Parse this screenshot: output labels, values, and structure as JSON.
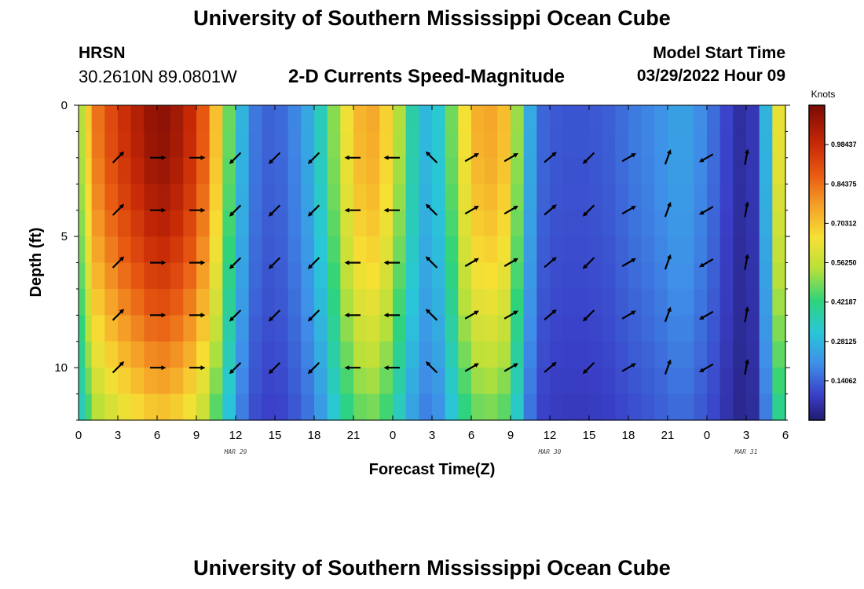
{
  "header": {
    "title": "University of Southern Mississippi Ocean Cube",
    "station": "HRSN",
    "coordinates": "30.2610N  89.0801W",
    "subtitle": "2-D Currents Speed-Magnitude",
    "model_start_label": "Model Start Time",
    "model_start_value": "03/29/2022 Hour 09"
  },
  "footer": {
    "title": "University of Southern Mississippi Ocean Cube"
  },
  "chart_data": {
    "type": "heatmap",
    "title": "2-D Currents Speed-Magnitude",
    "xlabel": "Forecast Time(Z)",
    "ylabel": "Depth (ft)",
    "xlim": [
      0,
      54
    ],
    "ylim": [
      0,
      12
    ],
    "x_ticks": [
      {
        "x": 0,
        "label": "0"
      },
      {
        "x": 3,
        "label": "3"
      },
      {
        "x": 6,
        "label": "6"
      },
      {
        "x": 9,
        "label": "9"
      },
      {
        "x": 12,
        "label": "12"
      },
      {
        "x": 15,
        "label": "15"
      },
      {
        "x": 18,
        "label": "18"
      },
      {
        "x": 21,
        "label": "21"
      },
      {
        "x": 24,
        "label": "0"
      },
      {
        "x": 27,
        "label": "3"
      },
      {
        "x": 30,
        "label": "6"
      },
      {
        "x": 33,
        "label": "9"
      },
      {
        "x": 36,
        "label": "12"
      },
      {
        "x": 39,
        "label": "15"
      },
      {
        "x": 42,
        "label": "18"
      },
      {
        "x": 45,
        "label": "21"
      },
      {
        "x": 48,
        "label": "0"
      },
      {
        "x": 51,
        "label": "3"
      },
      {
        "x": 54,
        "label": "6"
      }
    ],
    "date_labels": [
      {
        "x": 12,
        "label": "MAR 29"
      },
      {
        "x": 36,
        "label": "MAR 30"
      },
      {
        "x": 51,
        "label": "MAR 31"
      }
    ],
    "y_ticks": [
      {
        "y": 0,
        "label": "0"
      },
      {
        "y": 5,
        "label": "5"
      },
      {
        "y": 10,
        "label": "10"
      }
    ],
    "colorbar": {
      "title": "Knots",
      "min": 0.0,
      "max": 1.125,
      "tick_values": [
        0.984375,
        0.84375,
        0.703125,
        0.5625,
        0.421875,
        0.28125,
        0.140625
      ],
      "tick_labels": [
        "0.98437",
        "0.84375",
        "0.70312",
        "0.56250",
        "0.42187",
        "0.28125",
        "0.14062"
      ]
    },
    "depth_rows": [
      0.5,
      1.5,
      2.5,
      3.5,
      4.5,
      5.5,
      6.5,
      7.5,
      8.5,
      9.5,
      10.5,
      11.5
    ],
    "speed_profile": [
      {
        "t": 0,
        "v": 0.5
      },
      {
        "t": 0.5,
        "v": 0.58
      },
      {
        "t": 1,
        "v": 0.8
      },
      {
        "t": 2,
        "v": 0.88
      },
      {
        "t": 3,
        "v": 0.95
      },
      {
        "t": 4,
        "v": 1.0
      },
      {
        "t": 5,
        "v": 1.05
      },
      {
        "t": 6,
        "v": 1.1
      },
      {
        "t": 7,
        "v": 1.08
      },
      {
        "t": 8,
        "v": 1.03
      },
      {
        "t": 9,
        "v": 0.95
      },
      {
        "t": 10,
        "v": 0.82
      },
      {
        "t": 11,
        "v": 0.6
      },
      {
        "t": 12,
        "v": 0.35
      },
      {
        "t": 13,
        "v": 0.2
      },
      {
        "t": 14,
        "v": 0.14
      },
      {
        "t": 15,
        "v": 0.14
      },
      {
        "t": 16,
        "v": 0.16
      },
      {
        "t": 17,
        "v": 0.22
      },
      {
        "t": 18,
        "v": 0.28
      },
      {
        "t": 19,
        "v": 0.42
      },
      {
        "t": 20,
        "v": 0.58
      },
      {
        "t": 21,
        "v": 0.7
      },
      {
        "t": 22,
        "v": 0.76
      },
      {
        "t": 23,
        "v": 0.74
      },
      {
        "t": 24,
        "v": 0.62
      },
      {
        "t": 25,
        "v": 0.45
      },
      {
        "t": 26,
        "v": 0.3
      },
      {
        "t": 27,
        "v": 0.27
      },
      {
        "t": 28,
        "v": 0.38
      },
      {
        "t": 29,
        "v": 0.58
      },
      {
        "t": 30,
        "v": 0.72
      },
      {
        "t": 31,
        "v": 0.76
      },
      {
        "t": 32,
        "v": 0.75
      },
      {
        "t": 33,
        "v": 0.68
      },
      {
        "t": 34,
        "v": 0.35
      },
      {
        "t": 35,
        "v": 0.16
      },
      {
        "t": 36,
        "v": 0.13
      },
      {
        "t": 37,
        "v": 0.12
      },
      {
        "t": 38,
        "v": 0.12
      },
      {
        "t": 39,
        "v": 0.12
      },
      {
        "t": 40,
        "v": 0.13
      },
      {
        "t": 41,
        "v": 0.14
      },
      {
        "t": 42,
        "v": 0.17
      },
      {
        "t": 43,
        "v": 0.18
      },
      {
        "t": 44,
        "v": 0.2
      },
      {
        "t": 45,
        "v": 0.22
      },
      {
        "t": 46,
        "v": 0.25
      },
      {
        "t": 47,
        "v": 0.22
      },
      {
        "t": 48,
        "v": 0.18
      },
      {
        "t": 49,
        "v": 0.13
      },
      {
        "t": 50,
        "v": 0.06
      },
      {
        "t": 51,
        "v": 0.04
      },
      {
        "t": 52,
        "v": 0.1
      },
      {
        "t": 53,
        "v": 0.45
      },
      {
        "t": 54,
        "v": 0.8
      }
    ],
    "vector_columns": [
      {
        "t": 3,
        "angle": -45
      },
      {
        "t": 6,
        "angle": 0
      },
      {
        "t": 9,
        "angle": 0
      },
      {
        "t": 12,
        "angle": 135
      },
      {
        "t": 15,
        "angle": 135
      },
      {
        "t": 18,
        "angle": 135
      },
      {
        "t": 21,
        "angle": 180
      },
      {
        "t": 24,
        "angle": 180
      },
      {
        "t": 27,
        "angle": -135
      },
      {
        "t": 30,
        "angle": -30
      },
      {
        "t": 33,
        "angle": -30
      },
      {
        "t": 36,
        "angle": -40
      },
      {
        "t": 39,
        "angle": 135
      },
      {
        "t": 42,
        "angle": -30
      },
      {
        "t": 45,
        "angle": -70
      },
      {
        "t": 48,
        "angle": 150
      },
      {
        "t": 51,
        "angle": -80
      }
    ],
    "vector_depths": [
      2,
      4,
      6,
      8,
      10
    ]
  }
}
